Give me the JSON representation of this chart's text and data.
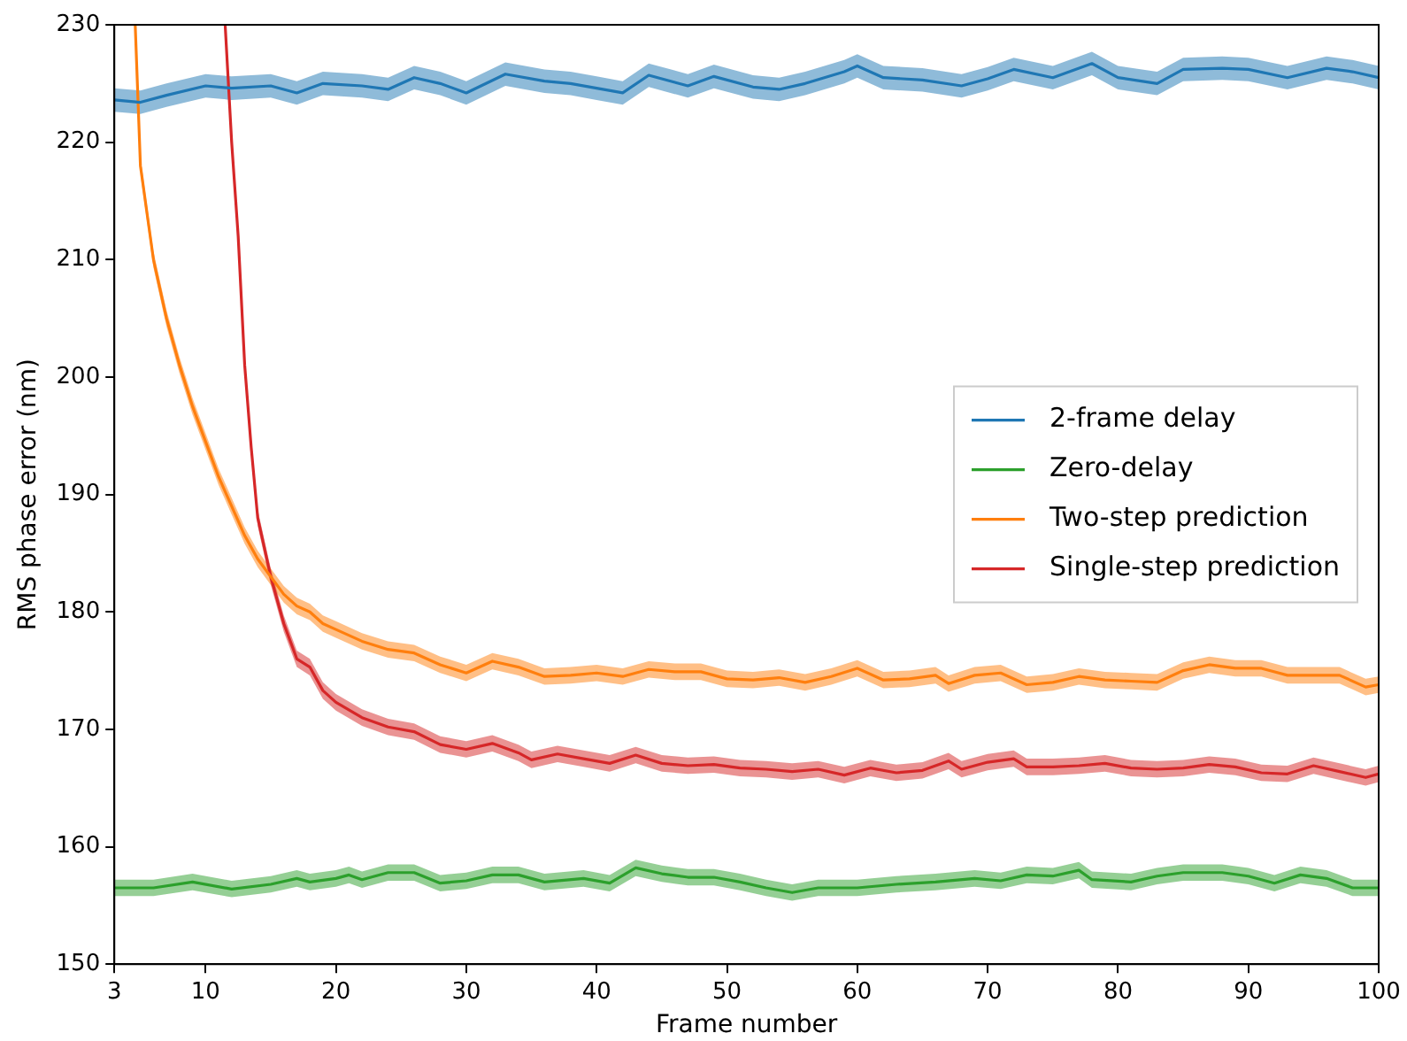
{
  "chart_data": {
    "type": "line",
    "xlabel": "Frame number",
    "ylabel": "RMS phase error (nm)",
    "xlim": [
      3,
      100
    ],
    "xticks": [
      3,
      10,
      20,
      30,
      40,
      50,
      60,
      70,
      80,
      90,
      100
    ],
    "ylim": [
      150,
      230
    ],
    "yticks": [
      150,
      160,
      170,
      180,
      190,
      200,
      210,
      220,
      230
    ],
    "grid": false,
    "legend": "right",
    "marker": "none",
    "line_style": "solid",
    "series": [
      {
        "name": "2-frame delay",
        "color": "#1f77b4",
        "x": [
          3,
          5,
          7,
          10,
          12,
          15,
          17,
          19,
          22,
          24,
          26,
          28,
          30,
          33,
          36,
          38,
          40,
          42,
          44,
          47,
          49,
          52,
          54,
          56,
          59,
          60,
          62,
          65,
          68,
          70,
          72,
          75,
          78,
          80,
          83,
          85,
          88,
          90,
          93,
          96,
          98,
          100
        ],
        "values": [
          223.6,
          223.4,
          224.0,
          224.8,
          224.6,
          224.8,
          224.2,
          225.0,
          224.8,
          224.5,
          225.5,
          225.0,
          224.2,
          225.8,
          225.2,
          225.0,
          224.6,
          224.2,
          225.7,
          224.8,
          225.6,
          224.7,
          224.5,
          225.0,
          226.0,
          226.5,
          225.5,
          225.3,
          224.8,
          225.4,
          226.2,
          225.5,
          226.7,
          225.5,
          225.0,
          226.2,
          226.3,
          226.2,
          225.5,
          226.3,
          226.0,
          225.5
        ],
        "lower": [
          222.6,
          222.4,
          223.0,
          223.8,
          223.6,
          223.8,
          223.2,
          224.0,
          223.8,
          223.5,
          224.5,
          224.0,
          223.2,
          224.8,
          224.2,
          224.0,
          223.6,
          223.2,
          224.7,
          223.8,
          224.6,
          223.7,
          223.5,
          224.0,
          225.0,
          225.5,
          224.5,
          224.3,
          223.8,
          224.4,
          225.2,
          224.5,
          225.7,
          224.5,
          224.0,
          225.2,
          225.3,
          225.2,
          224.5,
          225.3,
          225.0,
          224.5
        ],
        "upper": [
          224.6,
          224.4,
          225.0,
          225.8,
          225.6,
          225.8,
          225.2,
          226.0,
          225.8,
          225.5,
          226.5,
          226.0,
          225.2,
          226.8,
          226.2,
          226.0,
          225.6,
          225.2,
          226.7,
          225.8,
          226.6,
          225.7,
          225.5,
          226.0,
          227.0,
          227.5,
          226.5,
          226.3,
          225.8,
          226.4,
          227.2,
          226.5,
          227.7,
          226.5,
          226.0,
          227.2,
          227.3,
          227.2,
          226.5,
          227.3,
          227.0,
          226.5
        ]
      },
      {
        "name": "Zero-delay",
        "color": "#2ca02c",
        "x": [
          3,
          6,
          9,
          12,
          15,
          17,
          18,
          20,
          21,
          22,
          24,
          26,
          28,
          30,
          32,
          34,
          36,
          39,
          41,
          43,
          45,
          47,
          49,
          51,
          53,
          55,
          57,
          60,
          63,
          66,
          69,
          71,
          73,
          75,
          77,
          78,
          81,
          83,
          85,
          88,
          90,
          92,
          94,
          96,
          98,
          100
        ],
        "values": [
          156.5,
          156.5,
          157.0,
          156.4,
          156.8,
          157.3,
          157.0,
          157.3,
          157.6,
          157.2,
          157.8,
          157.8,
          156.9,
          157.1,
          157.6,
          157.6,
          157.0,
          157.3,
          156.9,
          158.2,
          157.7,
          157.4,
          157.4,
          157.0,
          156.5,
          156.1,
          156.5,
          156.5,
          156.8,
          157.0,
          157.3,
          157.1,
          157.6,
          157.5,
          158.0,
          157.2,
          157.0,
          157.5,
          157.8,
          157.8,
          157.5,
          156.9,
          157.6,
          157.3,
          156.5,
          156.5
        ],
        "lower": [
          155.8,
          155.8,
          156.3,
          155.7,
          156.1,
          156.6,
          156.3,
          156.6,
          156.9,
          156.5,
          157.1,
          157.1,
          156.2,
          156.4,
          156.9,
          156.9,
          156.3,
          156.6,
          156.2,
          157.5,
          157.0,
          156.7,
          156.7,
          156.3,
          155.8,
          155.4,
          155.8,
          155.8,
          156.1,
          156.3,
          156.6,
          156.4,
          156.9,
          156.8,
          157.3,
          156.5,
          156.3,
          156.8,
          157.1,
          157.1,
          156.8,
          156.2,
          156.9,
          156.6,
          155.8,
          155.8
        ],
        "upper": [
          157.2,
          157.2,
          157.7,
          157.1,
          157.5,
          158.0,
          157.7,
          158.0,
          158.3,
          157.9,
          158.5,
          158.5,
          157.6,
          157.8,
          158.3,
          158.3,
          157.7,
          158.0,
          157.6,
          158.9,
          158.4,
          158.1,
          158.1,
          157.7,
          157.2,
          156.8,
          157.2,
          157.2,
          157.5,
          157.7,
          158.0,
          157.8,
          158.3,
          158.2,
          158.7,
          157.9,
          157.7,
          158.2,
          158.5,
          158.5,
          158.2,
          157.6,
          158.3,
          158.0,
          157.2,
          157.2
        ]
      },
      {
        "name": "Two-step prediction",
        "color": "#ff7f0e",
        "x": [
          4.6,
          5,
          6,
          7,
          8,
          9,
          10,
          11,
          12,
          13,
          14,
          15,
          16,
          17,
          18,
          19,
          20,
          22,
          24,
          26,
          28,
          30,
          32,
          34,
          36,
          38,
          40,
          42,
          44,
          46,
          48,
          50,
          52,
          54,
          56,
          58,
          60,
          62,
          64,
          66,
          67,
          69,
          71,
          73,
          75,
          77,
          79,
          81,
          83,
          85,
          87,
          89,
          91,
          93,
          95,
          97,
          99,
          100
        ],
        "values": [
          230,
          218,
          210,
          205,
          201,
          197.5,
          194.5,
          191.5,
          189,
          186.5,
          184.5,
          183,
          181.5,
          180.5,
          180,
          179,
          178.5,
          177.5,
          176.8,
          176.5,
          175.5,
          174.8,
          175.8,
          175.3,
          174.5,
          174.6,
          174.8,
          174.5,
          175.1,
          174.9,
          174.9,
          174.3,
          174.2,
          174.4,
          174.0,
          174.5,
          175.2,
          174.2,
          174.3,
          174.6,
          173.9,
          174.6,
          174.8,
          173.8,
          174.0,
          174.5,
          174.2,
          174.1,
          174.0,
          175.0,
          175.5,
          175.2,
          175.2,
          174.6,
          174.6,
          174.6,
          173.6,
          173.8
        ],
        "lower": [
          null,
          217.3,
          209.3,
          204.3,
          200.3,
          196.8,
          193.8,
          190.8,
          188.3,
          185.8,
          183.8,
          182.3,
          180.8,
          179.8,
          179.3,
          178.3,
          177.8,
          176.8,
          176.1,
          175.8,
          174.8,
          174.1,
          175.1,
          174.6,
          173.8,
          173.9,
          174.1,
          173.8,
          174.4,
          174.2,
          174.2,
          173.6,
          173.5,
          173.7,
          173.3,
          173.8,
          174.5,
          173.5,
          173.6,
          173.9,
          173.2,
          173.9,
          174.1,
          173.1,
          173.3,
          173.8,
          173.5,
          173.4,
          173.3,
          174.3,
          174.8,
          174.5,
          174.5,
          173.9,
          173.9,
          173.9,
          172.9,
          173.1
        ],
        "upper": [
          null,
          218.7,
          210.7,
          205.7,
          201.7,
          198.2,
          195.2,
          192.2,
          189.7,
          187.2,
          185.2,
          183.7,
          182.2,
          181.2,
          180.7,
          179.7,
          179.2,
          178.2,
          177.5,
          177.2,
          176.2,
          175.5,
          176.5,
          176.0,
          175.2,
          175.3,
          175.5,
          175.2,
          175.8,
          175.6,
          175.6,
          175.0,
          174.9,
          175.1,
          174.7,
          175.2,
          175.9,
          174.9,
          175.0,
          175.3,
          174.6,
          175.3,
          175.5,
          174.5,
          174.7,
          175.2,
          174.9,
          174.8,
          174.7,
          175.7,
          176.2,
          175.9,
          175.9,
          175.3,
          175.3,
          175.3,
          174.3,
          174.5
        ]
      },
      {
        "name": "Single-step prediction",
        "color": "#d62728",
        "x": [
          11.5,
          12,
          12.5,
          13,
          13.5,
          14,
          15,
          16,
          17,
          18,
          19,
          20,
          22,
          24,
          26,
          28,
          30,
          32,
          34,
          35,
          37,
          39,
          41,
          43,
          45,
          47,
          49,
          51,
          53,
          55,
          57,
          59,
          61,
          63,
          65,
          67,
          68,
          70,
          72,
          73,
          75,
          77,
          79,
          81,
          83,
          85,
          87,
          89,
          91,
          93,
          95,
          97,
          99,
          100
        ],
        "values": [
          230,
          220,
          212,
          201,
          194,
          188,
          183,
          179,
          176,
          175.3,
          173.3,
          172.3,
          171,
          170.2,
          169.8,
          168.7,
          168.3,
          168.8,
          168,
          167.4,
          167.9,
          167.5,
          167.1,
          167.8,
          167.1,
          166.9,
          167.0,
          166.7,
          166.6,
          166.4,
          166.6,
          166.1,
          166.7,
          166.3,
          166.5,
          167.3,
          166.6,
          167.2,
          167.5,
          166.8,
          166.8,
          166.9,
          167.1,
          166.7,
          166.6,
          166.7,
          167.0,
          166.8,
          166.3,
          166.2,
          166.9,
          166.4,
          165.9,
          166.2
        ],
        "lower": [
          null,
          219.3,
          211.3,
          200.3,
          193.3,
          187.3,
          182.3,
          178.3,
          175.3,
          174.6,
          172.6,
          171.6,
          170.3,
          169.5,
          169.1,
          168.0,
          167.6,
          168.1,
          167.3,
          166.7,
          167.2,
          166.8,
          166.4,
          167.1,
          166.4,
          166.2,
          166.3,
          166.0,
          165.9,
          165.7,
          165.9,
          165.4,
          166.0,
          165.6,
          165.8,
          166.6,
          165.9,
          166.5,
          166.8,
          166.1,
          166.1,
          166.2,
          166.4,
          166.0,
          165.9,
          166.0,
          166.3,
          166.1,
          165.6,
          165.5,
          166.2,
          165.7,
          165.2,
          165.5
        ],
        "upper": [
          null,
          220.7,
          212.7,
          201.7,
          194.7,
          188.7,
          183.7,
          179.7,
          176.7,
          176.0,
          174.0,
          173.0,
          171.7,
          170.9,
          170.5,
          169.4,
          169.0,
          169.5,
          168.7,
          168.1,
          168.6,
          168.2,
          167.8,
          168.5,
          167.8,
          167.6,
          167.7,
          167.4,
          167.3,
          167.1,
          167.3,
          166.8,
          167.4,
          167.0,
          167.2,
          168.0,
          167.3,
          167.9,
          168.2,
          167.5,
          167.5,
          167.6,
          167.8,
          167.4,
          167.3,
          167.4,
          167.7,
          167.5,
          167.0,
          166.9,
          167.6,
          167.1,
          166.6,
          166.9
        ]
      }
    ]
  }
}
